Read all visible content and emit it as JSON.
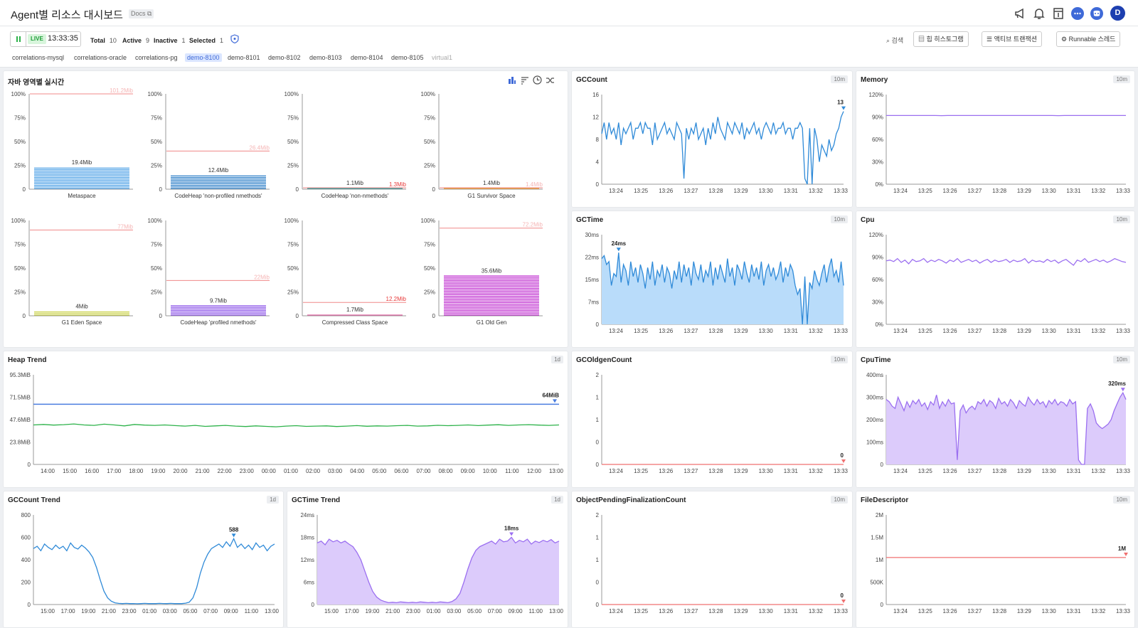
{
  "header": {
    "title": "Agent별 리소스 대시보드",
    "docs": "Docs ⧉",
    "avatar": "D"
  },
  "toolbar": {
    "live": "LIVE",
    "time": "13:33:35",
    "total_label": "Total",
    "total": "10",
    "active_label": "Active",
    "active": "9",
    "inactive_label": "Inactive",
    "inactive": "1",
    "selected_label": "Selected",
    "selected": "1",
    "search": "검색",
    "btn_heap": "힙 히스토그램",
    "btn_tx": "액티브 트랜잭션",
    "btn_thread": "Runnable 스레드"
  },
  "agents": [
    "correlations-mysql",
    "correlations-oracle",
    "correlations-pg",
    "demo-8100",
    "demo-8101",
    "demo-8102",
    "demo-8103",
    "demo-8104",
    "demo-8105",
    "virtual1"
  ],
  "colors": {
    "accent": "#3f6ad8",
    "blue": "#2f8ad8",
    "purple": "#9b6ff0",
    "green": "#2db24a",
    "red": "#f07070"
  },
  "java_panel": {
    "title": "자바 영역별 실시간",
    "yticks": [
      "100%",
      "75%",
      "50%",
      "25%",
      "0"
    ]
  },
  "chart_data": [
    {
      "id": "java_areas",
      "type": "bar",
      "bars": [
        {
          "name": "Metaspace",
          "value": "19.4Mib",
          "pct": 23,
          "max": "101.2Mib",
          "max_pct": 100,
          "color": "#4a9fe6"
        },
        {
          "name": "CodeHeap 'non-profiled nmethods'",
          "value": "12.4Mib",
          "pct": 15,
          "max": "26.4Mib",
          "max_pct": 40,
          "color": "#2b7ec8"
        },
        {
          "name": "CodeHeap 'non-nmethods'",
          "value": "1.1Mib",
          "pct": 1,
          "max": "1.3Mib",
          "max_pct": 1.5,
          "color": "#2a9d9d",
          "max_red": true
        },
        {
          "name": "G1 Survivor Space",
          "value": "1.4Mib",
          "pct": 1,
          "max": "1.4Mib",
          "max_pct": 1.5,
          "color": "#f0a030"
        },
        {
          "name": "G1 Eden Space",
          "value": "4Mib",
          "pct": 5,
          "max": "77Mib",
          "max_pct": 90,
          "color": "#c8d040"
        },
        {
          "name": "CodeHeap 'profiled nmethods'",
          "value": "9.7Mib",
          "pct": 11,
          "max": "22Mib",
          "max_pct": 37,
          "color": "#8a50e8"
        },
        {
          "name": "Compressed Class Space",
          "value": "1.7Mib",
          "pct": 1,
          "max": "12.2Mib",
          "max_pct": 14,
          "color": "#e060a0",
          "max_red": true
        },
        {
          "name": "G1 Old Gen",
          "value": "35.6Mib",
          "pct": 42,
          "max": "72.2Mib",
          "max_pct": 92,
          "color": "#c030d0"
        }
      ]
    },
    {
      "id": "gccount",
      "type": "line",
      "title": "GCCount",
      "range": "10m",
      "ylim": [
        0,
        16
      ],
      "yticks": [
        "16",
        "12",
        "8",
        "4",
        "0"
      ],
      "xticks": [
        "13:24",
        "13:25",
        "13:26",
        "13:27",
        "13:28",
        "13:29",
        "13:30",
        "13:31",
        "13:32",
        "13:33"
      ],
      "color": "#2f8ad8",
      "fill": false,
      "peak": "13",
      "values": [
        9,
        11,
        8,
        11,
        9,
        10,
        8,
        11,
        7,
        10,
        9,
        10,
        11,
        8,
        10,
        10,
        11,
        9,
        11,
        10,
        10,
        7,
        11,
        8,
        9,
        10,
        11,
        9,
        10,
        9,
        8,
        11,
        10,
        9,
        1,
        10,
        8,
        10,
        9,
        11,
        8,
        9,
        10,
        7,
        10,
        8,
        11,
        9,
        12,
        10,
        9,
        8,
        11,
        10,
        9,
        11,
        10,
        9,
        11,
        8,
        10,
        9,
        10,
        11,
        9,
        10,
        8,
        10,
        11,
        10,
        9,
        11,
        9,
        10,
        10,
        11,
        9,
        10,
        10,
        8,
        10,
        10,
        11,
        10,
        1,
        0,
        10,
        0,
        10,
        8,
        4,
        7,
        6,
        5,
        8,
        6,
        7,
        9,
        10,
        12,
        13
      ]
    },
    {
      "id": "memory",
      "type": "line",
      "title": "Memory",
      "range": "10m",
      "ylim": [
        0,
        120
      ],
      "yticks": [
        "120%",
        "90%",
        "60%",
        "30%",
        "0%"
      ],
      "xticks": [
        "13:24",
        "13:25",
        "13:26",
        "13:27",
        "13:28",
        "13:29",
        "13:30",
        "13:31",
        "13:32",
        "13:33"
      ],
      "color": "#9b6ff0",
      "fill": false,
      "values": [
        92,
        92,
        92,
        92,
        92,
        92,
        92,
        92,
        92,
        91.8,
        92,
        92,
        92,
        92,
        92,
        92,
        92,
        92,
        92,
        92,
        92,
        92,
        92,
        92,
        92,
        92,
        92,
        92,
        91.8,
        92,
        92,
        92,
        92,
        92,
        92,
        92,
        92,
        92,
        92,
        92
      ]
    },
    {
      "id": "gctime",
      "type": "line",
      "title": "GCTime",
      "range": "10m",
      "ylim": [
        0,
        30
      ],
      "yticks": [
        "30ms",
        "22ms",
        "15ms",
        "7ms",
        "0"
      ],
      "xticks": [
        "13:24",
        "13:25",
        "13:26",
        "13:27",
        "13:28",
        "13:29",
        "13:30",
        "13:31",
        "13:32",
        "13:33"
      ],
      "color": "#2f8ad8",
      "fill": "#b9dcfa",
      "peak": "24ms",
      "values": [
        22,
        23,
        20,
        21,
        13,
        17,
        16,
        24,
        14,
        20,
        18,
        13,
        21,
        16,
        19,
        14,
        20,
        17,
        12,
        19,
        15,
        21,
        13,
        18,
        16,
        20,
        14,
        19,
        17,
        12,
        18,
        15,
        21,
        14,
        20,
        16,
        19,
        13,
        21,
        17,
        15,
        20,
        14,
        18,
        16,
        21,
        13,
        19,
        15,
        20,
        17,
        14,
        22,
        16,
        19,
        13,
        20,
        18,
        15,
        21,
        17,
        14,
        20,
        16,
        19,
        15,
        21,
        13,
        18,
        20,
        16,
        19,
        15,
        17,
        21,
        14,
        19,
        16,
        20,
        18,
        13,
        10,
        12,
        0,
        16,
        0,
        14,
        12,
        18,
        15,
        13,
        17,
        20,
        14,
        19,
        22,
        16,
        18,
        14,
        21,
        13
      ]
    },
    {
      "id": "cpu",
      "type": "line",
      "title": "Cpu",
      "range": "10m",
      "ylim": [
        0,
        120
      ],
      "yticks": [
        "120%",
        "90%",
        "60%",
        "30%",
        "0%"
      ],
      "xticks": [
        "13:24",
        "13:25",
        "13:26",
        "13:27",
        "13:28",
        "13:29",
        "13:30",
        "13:31",
        "13:32",
        "13:33"
      ],
      "color": "#9b6ff0",
      "fill": false,
      "values": [
        85,
        86,
        84,
        88,
        83,
        86,
        81,
        87,
        84,
        85,
        88,
        83,
        86,
        84,
        87,
        85,
        82,
        86,
        84,
        88,
        83,
        85,
        87,
        84,
        86,
        82,
        85,
        87,
        83,
        86,
        84,
        85,
        87,
        83,
        86,
        84,
        85,
        88,
        82,
        86,
        84,
        85,
        83,
        87,
        84,
        86,
        82,
        85,
        87,
        83,
        79,
        86,
        84,
        88,
        83,
        85,
        87,
        84,
        86,
        83,
        85,
        88,
        86,
        84,
        83
      ]
    },
    {
      "id": "heap_trend",
      "type": "line",
      "title": "Heap Trend",
      "range": "1d",
      "ylim": [
        0,
        95.3
      ],
      "yticks": [
        "95.3MiB",
        "71.5MiB",
        "47.6MiB",
        "23.8MiB",
        "0"
      ],
      "xticks": [
        "14:00",
        "15:00",
        "16:00",
        "17:00",
        "18:00",
        "19:00",
        "20:00",
        "21:00",
        "22:00",
        "23:00",
        "00:00",
        "01:00",
        "02:00",
        "03:00",
        "04:00",
        "05:00",
        "06:00",
        "07:00",
        "08:00",
        "09:00",
        "10:00",
        "11:00",
        "12:00",
        "13:00"
      ],
      "color": "#2db24a",
      "fill": false,
      "max_line": 64,
      "max_color": "#4a7de0",
      "peak": "64MiB",
      "values": [
        42,
        42.5,
        41.8,
        42.3,
        43,
        42,
        41.5,
        42.8,
        42,
        41,
        42.5,
        41.8,
        41.5,
        42,
        41.3,
        40.8,
        41.5,
        40.5,
        41,
        41.5,
        40.8,
        40.3,
        41,
        40.5,
        40,
        40.8,
        41.2,
        40.5,
        40.8,
        41,
        40.3,
        40.8,
        41.3,
        40.6,
        41,
        40.8,
        41.2,
        41.5,
        40.8,
        41,
        41.6,
        41.2,
        41.5,
        42,
        41.3,
        41.8,
        42.2,
        41.5,
        42,
        42.3,
        41.8,
        41.5,
        42
      ]
    },
    {
      "id": "gcoldgen",
      "type": "line",
      "title": "GCOldgenCount",
      "range": "10m",
      "ylim": [
        0,
        2
      ],
      "yticks": [
        "2",
        "1",
        "1",
        "0",
        "0"
      ],
      "xticks": [
        "13:24",
        "13:25",
        "13:26",
        "13:27",
        "13:28",
        "13:29",
        "13:30",
        "13:31",
        "13:32",
        "13:33"
      ],
      "color": "#f07070",
      "fill": false,
      "peak": "0",
      "values": [
        0,
        0,
        0,
        0,
        0,
        0,
        0,
        0,
        0,
        0,
        0,
        0,
        0,
        0,
        0,
        0,
        0,
        0,
        0,
        0
      ]
    },
    {
      "id": "cputime",
      "type": "line",
      "title": "CpuTime",
      "range": "10m",
      "ylim": [
        0,
        400
      ],
      "yticks": [
        "400ms",
        "300ms",
        "200ms",
        "100ms",
        "0"
      ],
      "xticks": [
        "13:24",
        "13:25",
        "13:26",
        "13:27",
        "13:28",
        "13:29",
        "13:30",
        "13:31",
        "13:32",
        "13:33"
      ],
      "color": "#9b6ff0",
      "fill": "#dccbfb",
      "peak": "320ms",
      "values": [
        290,
        280,
        260,
        250,
        300,
        270,
        240,
        280,
        255,
        285,
        270,
        290,
        260,
        275,
        245,
        280,
        265,
        310,
        250,
        280,
        260,
        290,
        270,
        275,
        20,
        240,
        265,
        230,
        250,
        260,
        245,
        280,
        270,
        290,
        260,
        285,
        275,
        250,
        295,
        270,
        280,
        260,
        290,
        275,
        250,
        285,
        270,
        260,
        300,
        280,
        265,
        290,
        270,
        280,
        255,
        285,
        270,
        290,
        265,
        280,
        275,
        260,
        290,
        270,
        280,
        20,
        0,
        0,
        250,
        270,
        240,
        185,
        170,
        160,
        170,
        180,
        200,
        240,
        270,
        300,
        320,
        290
      ]
    },
    {
      "id": "gccount_trend",
      "type": "line",
      "title": "GCCount Trend",
      "range": "1d",
      "ylim": [
        0,
        800
      ],
      "yticks": [
        "800",
        "600",
        "400",
        "200",
        "0"
      ],
      "xticks": [
        "15:00",
        "17:00",
        "19:00",
        "21:00",
        "23:00",
        "01:00",
        "03:00",
        "05:00",
        "07:00",
        "09:00",
        "11:00",
        "13:00"
      ],
      "color": "#2f8ad8",
      "fill": false,
      "peak": "588",
      "values": [
        500,
        520,
        480,
        540,
        510,
        490,
        530,
        500,
        520,
        480,
        550,
        510,
        495,
        530,
        505,
        470,
        420,
        330,
        220,
        120,
        60,
        30,
        15,
        10,
        8,
        10,
        8,
        9,
        7,
        8,
        10,
        8,
        9,
        8,
        10,
        9,
        8,
        10,
        8,
        9,
        8,
        12,
        20,
        60,
        150,
        280,
        380,
        450,
        500,
        520,
        540,
        510,
        560,
        520,
        588,
        510,
        540,
        500,
        530,
        490,
        550,
        510,
        530,
        480,
        520,
        540
      ]
    },
    {
      "id": "gctime_trend",
      "type": "line",
      "title": "GCTime Trend",
      "range": "1d",
      "ylim": [
        0,
        24
      ],
      "yticks": [
        "24ms",
        "18ms",
        "12ms",
        "6ms",
        "0"
      ],
      "xticks": [
        "15:00",
        "17:00",
        "19:00",
        "21:00",
        "23:00",
        "01:00",
        "03:00",
        "05:00",
        "07:00",
        "09:00",
        "11:00",
        "13:00"
      ],
      "color": "#9b6ff0",
      "fill": "#dccbfb",
      "peak": "18ms",
      "values": [
        16.5,
        17,
        16,
        17.5,
        16.8,
        17.2,
        16.5,
        17,
        16.2,
        15.5,
        14,
        12,
        9,
        6,
        3.5,
        2,
        1.2,
        0.8,
        0.5,
        0.6,
        0.5,
        0.7,
        0.6,
        0.5,
        0.6,
        0.5,
        0.7,
        0.6,
        0.5,
        0.6,
        0.5,
        0.7,
        0.6,
        0.5,
        0.8,
        1.5,
        3,
        6,
        9.5,
        12.5,
        14.5,
        15.5,
        16,
        16.5,
        17,
        16.2,
        17.5,
        16.8,
        17,
        18,
        16.5,
        17.2,
        16.8,
        17.5,
        16.2,
        17,
        16.6,
        17.2,
        16.8,
        17.4,
        16.5,
        17
      ]
    },
    {
      "id": "objpending",
      "type": "line",
      "title": "ObjectPendingFinalizationCount",
      "range": "10m",
      "ylim": [
        0,
        2
      ],
      "yticks": [
        "2",
        "1",
        "1",
        "0",
        "0"
      ],
      "xticks": [
        "13:24",
        "13:25",
        "13:26",
        "13:27",
        "13:28",
        "13:29",
        "13:30",
        "13:31",
        "13:32",
        "13:33"
      ],
      "color": "#f07070",
      "fill": false,
      "peak": "0",
      "values": [
        0,
        0,
        0,
        0,
        0,
        0,
        0,
        0,
        0,
        0,
        0,
        0,
        0,
        0,
        0,
        0,
        0,
        0,
        0,
        0
      ]
    },
    {
      "id": "filedesc",
      "type": "line",
      "title": "FileDescriptor",
      "range": "10m",
      "ylim": [
        0,
        2000000
      ],
      "yticks": [
        "2M",
        "1.5M",
        "1M",
        "500K",
        "0"
      ],
      "xticks": [
        "13:24",
        "13:25",
        "13:26",
        "13:27",
        "13:28",
        "13:29",
        "13:30",
        "13:31",
        "13:32",
        "13:33"
      ],
      "color": "#f07070",
      "fill": false,
      "peak": "1M",
      "values": [
        1048576,
        1048576,
        1048576,
        1048576,
        1048576,
        1048576,
        1048576,
        1048576,
        1048576,
        1048576,
        1048576,
        1048576,
        1048576,
        1048576,
        1048576,
        1048576,
        1048576,
        1048576,
        1048576,
        1048576
      ]
    }
  ]
}
